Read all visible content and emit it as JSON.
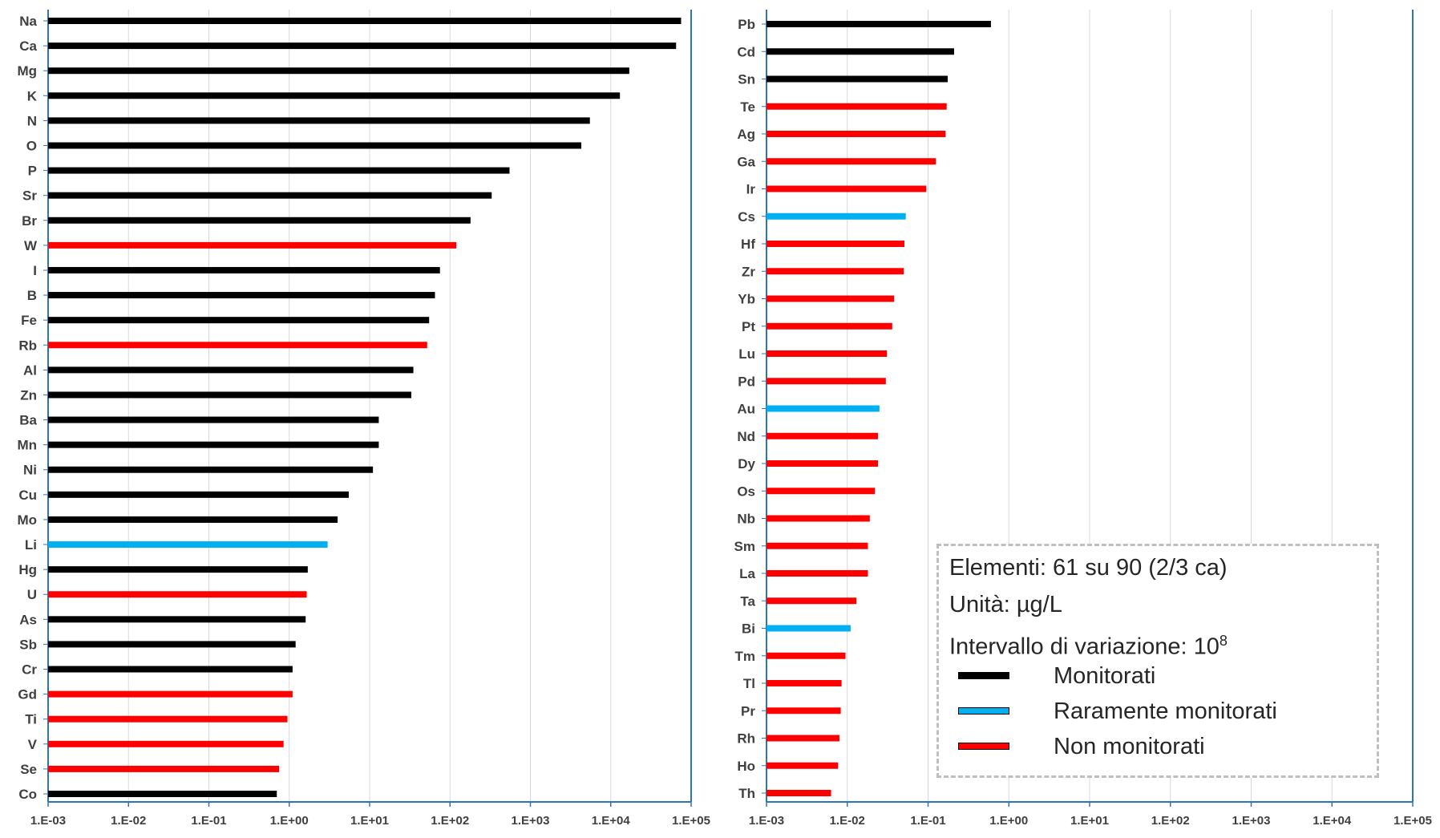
{
  "colors": {
    "monitorati": "#000000",
    "raramente": "#00b0f0",
    "non_monitorati": "#ff0000",
    "axis": "#2e75b6",
    "grid": "#d9d9d9",
    "legend_border": "#bfbfbf"
  },
  "legend": {
    "line1": "Elementi: 61 su 90 (2/3 ca)",
    "line2": "Unità: µg/L",
    "line3_text": "Intervallo di variazione: 10",
    "line3_sup": "8",
    "entries": [
      {
        "label": "Monitorati",
        "color": "#000000"
      },
      {
        "label": "Raramente monitorati",
        "color": "#00b0f0"
      },
      {
        "label": "Non monitorati",
        "color": "#ff0000"
      }
    ]
  },
  "chart_data": [
    {
      "type": "bar",
      "orientation": "horizontal",
      "x_scale": "log",
      "xlim": [
        0.001,
        100000
      ],
      "x_ticks": [
        "1.E-03",
        "1.E-02",
        "1.E-01",
        "1.E+00",
        "1.E+01",
        "1.E+02",
        "1.E+03",
        "1.E+04",
        "1.E+05"
      ],
      "grid": true,
      "categories": [
        "Na",
        "Ca",
        "Mg",
        "K",
        "N",
        "O",
        "P",
        "Sr",
        "Br",
        "W",
        "I",
        "B",
        "Fe",
        "Rb",
        "Al",
        "Zn",
        "Ba",
        "Mn",
        "Ni",
        "Cu",
        "Mo",
        "Li",
        "Hg",
        "U",
        "As",
        "Sb",
        "Cr",
        "Gd",
        "Ti",
        "V",
        "Se",
        "Co"
      ],
      "values": [
        75000,
        65000,
        17000,
        13000,
        5500,
        4300,
        550,
        330,
        180,
        120,
        75,
        65,
        55,
        52,
        35,
        33,
        13,
        13,
        11,
        5.5,
        4,
        3,
        1.7,
        1.65,
        1.6,
        1.2,
        1.1,
        1.1,
        0.95,
        0.85,
        0.75,
        0.7
      ],
      "groups": [
        "monitorati",
        "monitorati",
        "monitorati",
        "monitorati",
        "monitorati",
        "monitorati",
        "monitorati",
        "monitorati",
        "monitorati",
        "non_monitorati",
        "monitorati",
        "monitorati",
        "monitorati",
        "non_monitorati",
        "monitorati",
        "monitorati",
        "monitorati",
        "monitorati",
        "monitorati",
        "monitorati",
        "monitorati",
        "raramente",
        "monitorati",
        "non_monitorati",
        "monitorati",
        "monitorati",
        "monitorati",
        "non_monitorati",
        "non_monitorati",
        "non_monitorati",
        "non_monitorati",
        "monitorati"
      ]
    },
    {
      "type": "bar",
      "orientation": "horizontal",
      "x_scale": "log",
      "xlim": [
        0.001,
        100000
      ],
      "x_ticks": [
        "1.E-03",
        "1.E-02",
        "1.E-01",
        "1.E+00",
        "1.E+01",
        "1.E+02",
        "1.E+03",
        "1.E+04",
        "1.E+05"
      ],
      "grid": true,
      "categories": [
        "Pb",
        "Cd",
        "Sn",
        "Te",
        "Ag",
        "Ga",
        "Ir",
        "Cs",
        "Hf",
        "Zr",
        "Yb",
        "Pt",
        "Lu",
        "Pd",
        "Au",
        "Nd",
        "Dy",
        "Os",
        "Nb",
        "Sm",
        "La",
        "Ta",
        "Bi",
        "Tm",
        "Tl",
        "Pr",
        "Rh",
        "Ho",
        "Th"
      ],
      "values": [
        0.6,
        0.21,
        0.175,
        0.17,
        0.165,
        0.125,
        0.095,
        0.053,
        0.051,
        0.05,
        0.038,
        0.036,
        0.031,
        0.03,
        0.025,
        0.024,
        0.024,
        0.022,
        0.019,
        0.018,
        0.018,
        0.013,
        0.011,
        0.0095,
        0.0085,
        0.0083,
        0.008,
        0.0077,
        0.0063
      ],
      "groups": [
        "monitorati",
        "monitorati",
        "monitorati",
        "non_monitorati",
        "non_monitorati",
        "non_monitorati",
        "non_monitorati",
        "raramente",
        "non_monitorati",
        "non_monitorati",
        "non_monitorati",
        "non_monitorati",
        "non_monitorati",
        "non_monitorati",
        "raramente",
        "non_monitorati",
        "non_monitorati",
        "non_monitorati",
        "non_monitorati",
        "non_monitorati",
        "non_monitorati",
        "non_monitorati",
        "raramente",
        "non_monitorati",
        "non_monitorati",
        "non_monitorati",
        "non_monitorati",
        "non_monitorati",
        "non_monitorati"
      ]
    }
  ]
}
